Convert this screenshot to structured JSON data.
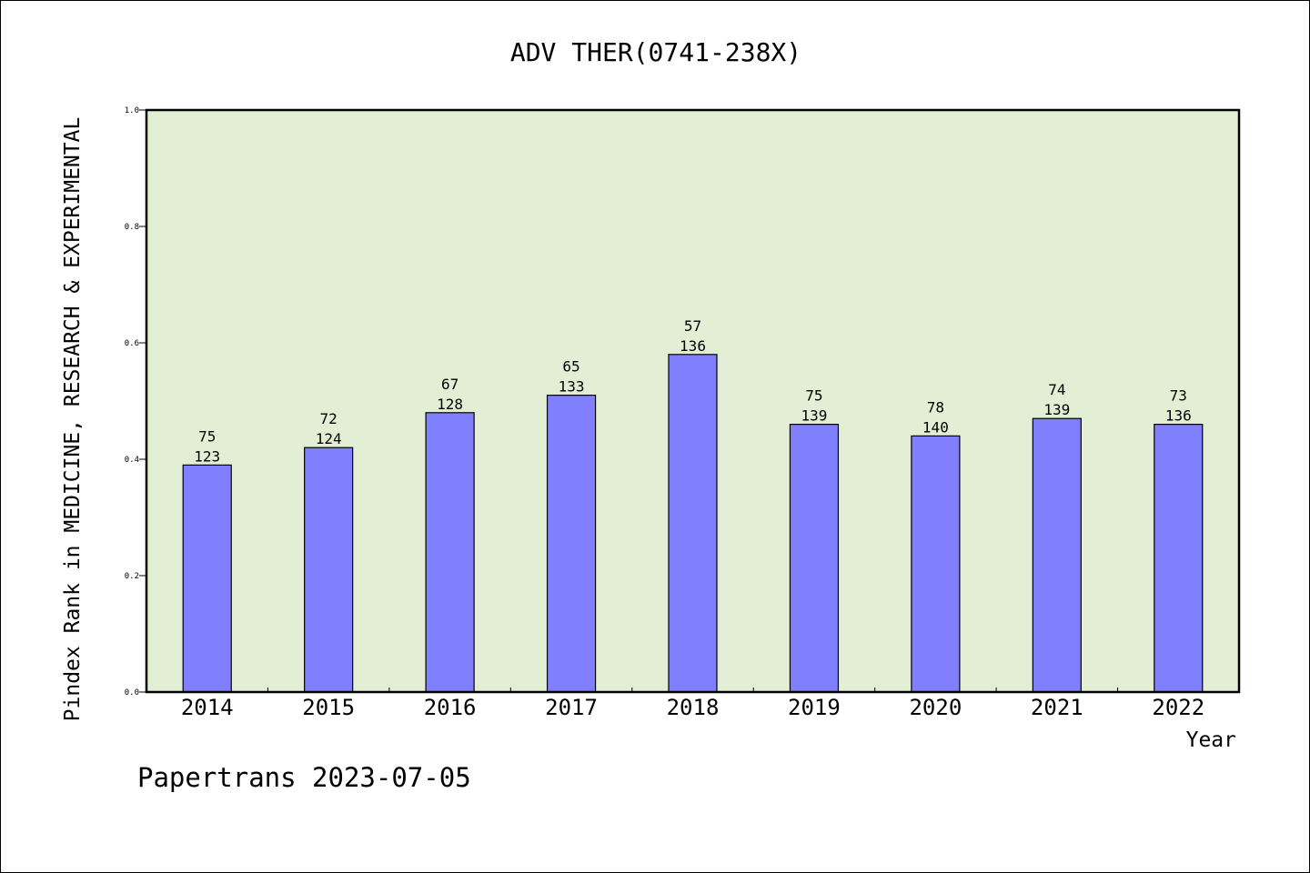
{
  "chart_data": {
    "type": "bar",
    "title": "ADV THER(0741-238X)",
    "xlabel": "Year",
    "ylabel": "Pindex Rank in MEDICINE, RESEARCH & EXPERIMENTAL",
    "categories": [
      "2014",
      "2015",
      "2016",
      "2017",
      "2018",
      "2019",
      "2020",
      "2021",
      "2022"
    ],
    "values": [
      0.39,
      0.42,
      0.48,
      0.51,
      0.58,
      0.46,
      0.44,
      0.47,
      0.46
    ],
    "labels_rank": [
      "75",
      "72",
      "67",
      "65",
      "57",
      "75",
      "78",
      "74",
      "73"
    ],
    "labels_total": [
      "123",
      "124",
      "128",
      "133",
      "136",
      "139",
      "140",
      "139",
      "136"
    ],
    "ylim": [
      0,
      1.0
    ],
    "yticks": [
      "0.0",
      "0.2",
      "0.4",
      "0.6",
      "0.8",
      "1.0"
    ],
    "grid": false,
    "colors": {
      "bar": "#8080ff",
      "plot_bg": "#e2efd5"
    }
  },
  "footer": "Papertrans 2023-07-05"
}
